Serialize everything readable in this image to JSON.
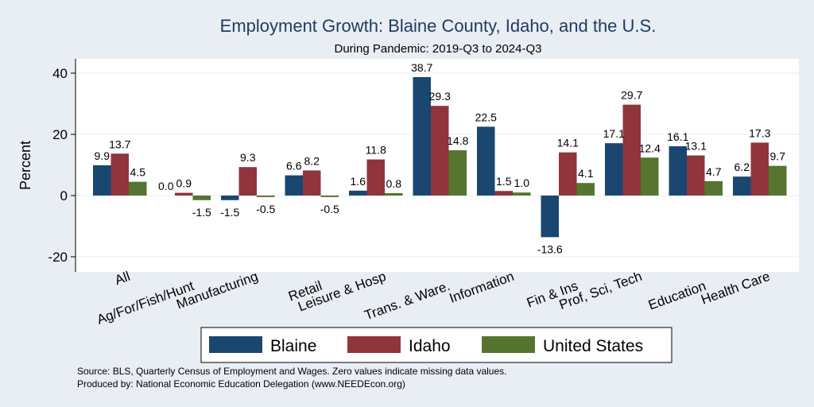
{
  "chart_data": {
    "type": "bar",
    "title": "Employment Growth: Blaine County, Idaho, and the U.S.",
    "subtitle": "During Pandemic: 2019-Q3 to 2024-Q3",
    "ylabel": "Percent",
    "xlabel": "",
    "ylim": [
      -25,
      45
    ],
    "yticks": [
      -20,
      0,
      20,
      40
    ],
    "grid": true,
    "legend_position": "bottom",
    "categories": [
      "All",
      "Ag/For/Fish/Hunt",
      "Manufacturing",
      "Retail",
      "Leisure & Hosp",
      "Trans. & Ware.",
      "Information",
      "Fin & Ins",
      "Prof, Sci, Tech",
      "Education",
      "Health Care"
    ],
    "series": [
      {
        "name": "Blaine",
        "color": "#1a476f",
        "values": [
          9.9,
          0.0,
          -1.5,
          6.6,
          1.6,
          38.7,
          22.5,
          -13.6,
          17.1,
          16.1,
          6.2
        ],
        "labels": [
          "9.9",
          "0.0",
          "-1.5",
          "6.6",
          "1.6",
          "38.7",
          "22.5",
          "-13.6",
          "17.1",
          "16.1",
          "6.2"
        ]
      },
      {
        "name": "Idaho",
        "color": "#90353b",
        "values": [
          13.7,
          0.9,
          9.3,
          8.2,
          11.8,
          29.3,
          1.5,
          14.1,
          29.7,
          13.1,
          17.3
        ],
        "labels": [
          "13.7",
          "0.9",
          "9.3",
          "8.2",
          "11.8",
          "29.3",
          "1.5",
          "14.1",
          "29.7",
          "13.1",
          "17.3"
        ]
      },
      {
        "name": "United States",
        "color": "#55752f",
        "values": [
          4.5,
          -1.5,
          -0.5,
          -0.5,
          0.8,
          14.8,
          1.0,
          4.1,
          12.4,
          4.7,
          9.7
        ],
        "labels": [
          "4.5",
          "-1.5",
          "-0.5",
          "-0.5",
          "0.8",
          "14.8",
          "1.0",
          "4.1",
          "12.4",
          "4.7",
          "9.7"
        ]
      }
    ],
    "notes": [
      "Source: BLS, Quarterly Census of Employment and Wages. Zero values indicate missing data values.",
      "Produced by: National Economic Education Delegation (www.NEEDEcon.org)"
    ]
  }
}
